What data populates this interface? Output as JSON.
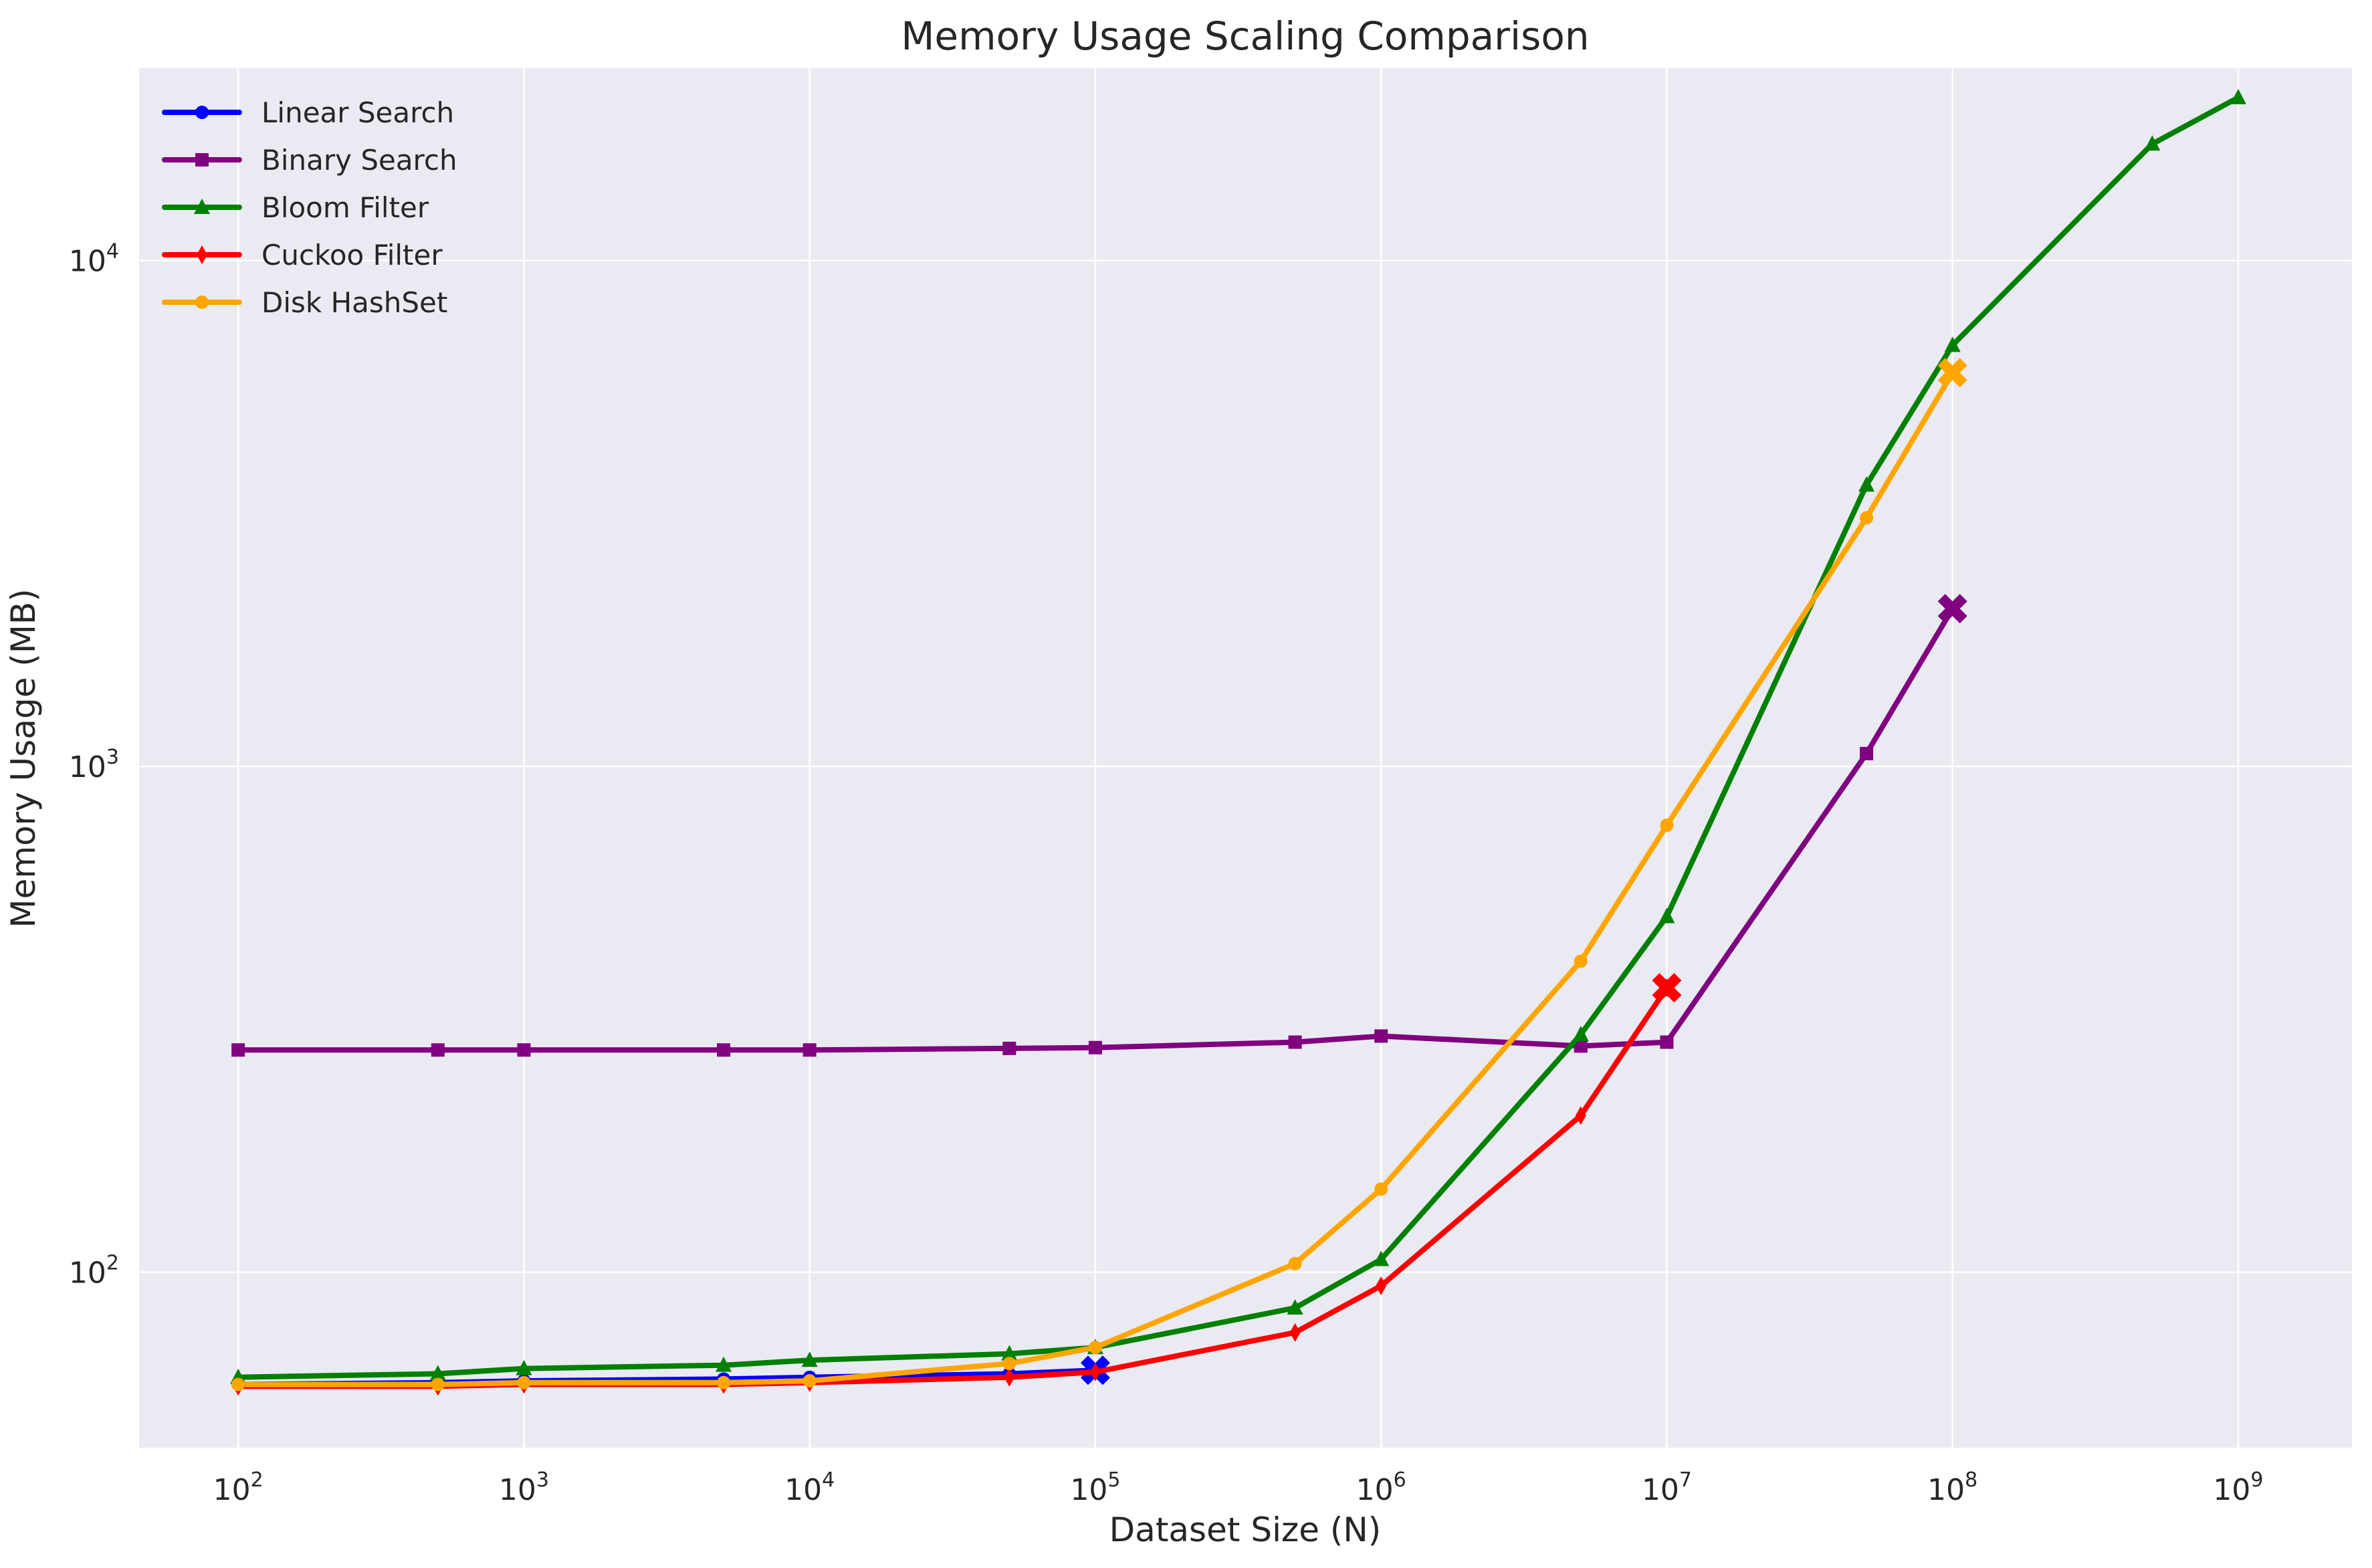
{
  "chart_data": {
    "type": "line",
    "title": "Memory Usage Scaling Comparison",
    "xlabel": "Dataset Size (N)",
    "ylabel": "Memory Usage (MB)",
    "x_scale": "log",
    "y_scale": "log",
    "xlim": [
      45,
      2500000000
    ],
    "ylim": [
      45,
      24000
    ],
    "x_ticks": [
      {
        "value": 100,
        "base": "10",
        "exp": "2"
      },
      {
        "value": 1000,
        "base": "10",
        "exp": "3"
      },
      {
        "value": 10000,
        "base": "10",
        "exp": "4"
      },
      {
        "value": 100000,
        "base": "10",
        "exp": "5"
      },
      {
        "value": 1000000,
        "base": "10",
        "exp": "6"
      },
      {
        "value": 10000000,
        "base": "10",
        "exp": "7"
      },
      {
        "value": 100000000,
        "base": "10",
        "exp": "8"
      },
      {
        "value": 1000000000,
        "base": "10",
        "exp": "9"
      }
    ],
    "y_ticks": [
      {
        "value": 100,
        "base": "10",
        "exp": "2"
      },
      {
        "value": 1000,
        "base": "10",
        "exp": "3"
      },
      {
        "value": 10000,
        "base": "10",
        "exp": "4"
      }
    ],
    "grid": true,
    "legend_position": "top-left",
    "series": [
      {
        "name": "Linear Search",
        "color": "#0000ff",
        "marker": "circle",
        "x": [
          100,
          500,
          1000,
          5000,
          10000,
          50000,
          100000
        ],
        "y": [
          60,
          60.5,
          61,
          61.5,
          62,
          63,
          64
        ],
        "end_marker": {
          "x": 100000,
          "y": 64
        }
      },
      {
        "name": "Binary Search",
        "color": "#800080",
        "marker": "square",
        "x": [
          100,
          500,
          1000,
          5000,
          10000,
          50000,
          100000,
          500000,
          1000000,
          5000000,
          10000000,
          50000000,
          100000000
        ],
        "y": [
          275,
          275,
          275,
          275,
          275,
          277,
          278,
          285,
          293,
          280,
          285,
          1060,
          2050
        ],
        "end_marker": {
          "x": 100000000,
          "y": 2050
        }
      },
      {
        "name": "Bloom Filter",
        "color": "#008000",
        "marker": "triangle",
        "x": [
          100,
          500,
          1000,
          5000,
          10000,
          50000,
          100000,
          500000,
          1000000,
          5000000,
          10000000,
          50000000,
          100000000,
          500000000,
          1000000000
        ],
        "y": [
          62,
          63,
          64.5,
          65.5,
          67,
          69,
          71,
          85,
          106,
          295,
          505,
          3600,
          6800,
          17000,
          21000
        ],
        "end_marker": null
      },
      {
        "name": "Cuckoo Filter",
        "color": "#ff0000",
        "marker": "diamond",
        "x": [
          100,
          500,
          1000,
          5000,
          10000,
          50000,
          100000,
          500000,
          1000000,
          5000000,
          10000000
        ],
        "y": [
          59.5,
          59.5,
          60,
          60,
          60.5,
          62,
          63.5,
          76,
          94,
          204,
          365
        ],
        "end_marker": {
          "x": 10000000,
          "y": 365
        }
      },
      {
        "name": "Disk HashSet",
        "color": "#ffa500",
        "marker": "circle",
        "x": [
          100,
          500,
          1000,
          5000,
          10000,
          50000,
          100000,
          500000,
          1000000,
          5000000,
          10000000,
          50000000,
          100000000
        ],
        "y": [
          60,
          60,
          60.5,
          60.5,
          61,
          66,
          71,
          104,
          146,
          412,
          765,
          3100,
          6000
        ],
        "end_marker": {
          "x": 100000000,
          "y": 6000
        }
      }
    ]
  }
}
